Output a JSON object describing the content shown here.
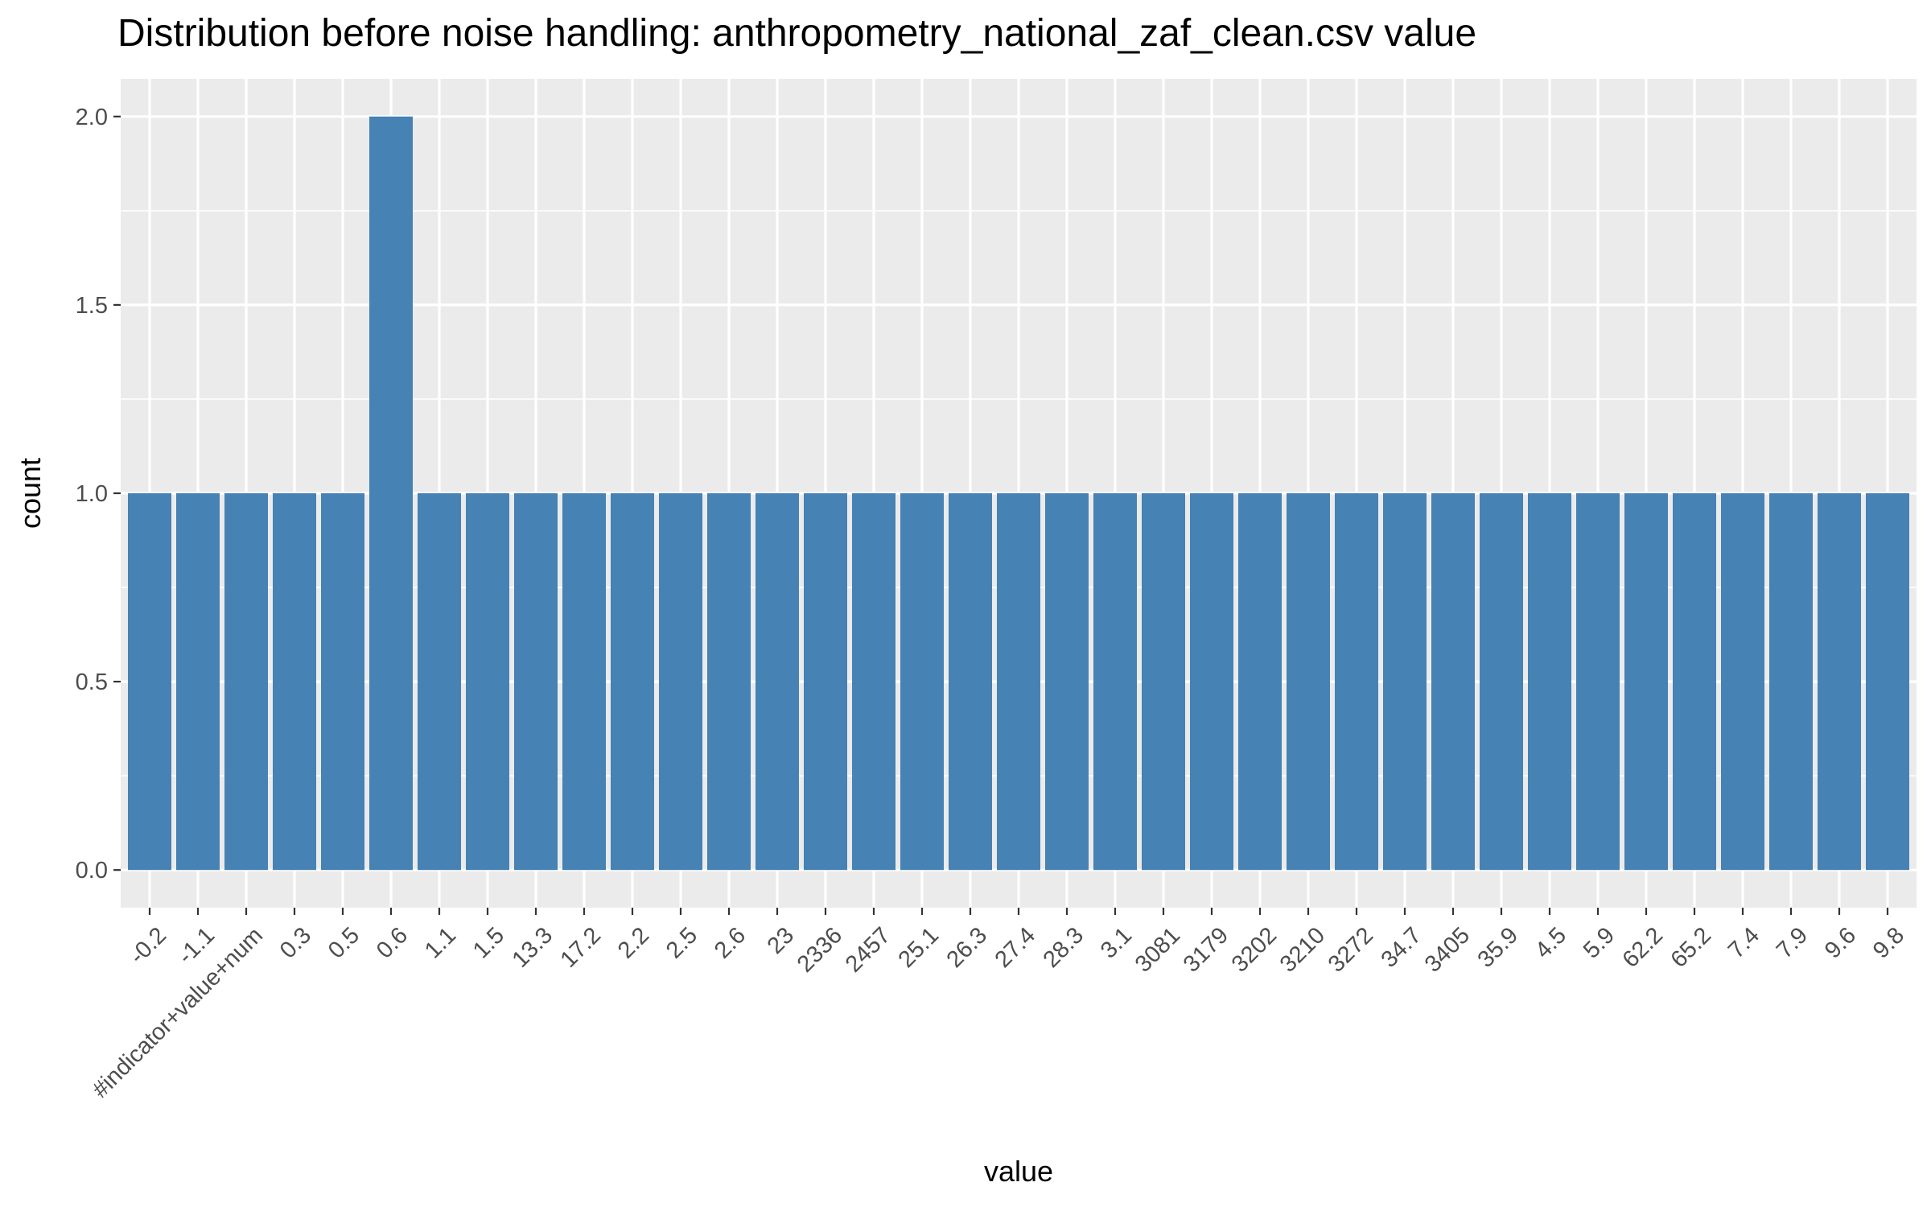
{
  "chart_data": {
    "type": "bar",
    "title": "Distribution before noise handling: anthropometry_national_zaf_clean.csv value",
    "xlabel": "value",
    "ylabel": "count",
    "ylim": [
      -0.1,
      2.1
    ],
    "yticks": [
      "0.0",
      "0.5",
      "1.0",
      "1.5",
      "2.0"
    ],
    "grid": true,
    "colors": {
      "bar": "#4682b4",
      "panel": "#ebebeb",
      "grid": "#ffffff"
    },
    "categories": [
      "-0.2",
      "-1.1",
      "#indicator+value+num",
      "0.3",
      "0.5",
      "0.6",
      "1.1",
      "1.5",
      "13.3",
      "17.2",
      "2.2",
      "2.5",
      "2.6",
      "23",
      "2336",
      "2457",
      "25.1",
      "26.3",
      "27.4",
      "28.3",
      "3.1",
      "3081",
      "3179",
      "3202",
      "3210",
      "3272",
      "34.7",
      "3405",
      "35.9",
      "4.5",
      "5.9",
      "62.2",
      "65.2",
      "7.4",
      "7.9",
      "9.6",
      "9.8"
    ],
    "values": [
      1,
      1,
      1,
      1,
      1,
      2,
      1,
      1,
      1,
      1,
      1,
      1,
      1,
      1,
      1,
      1,
      1,
      1,
      1,
      1,
      1,
      1,
      1,
      1,
      1,
      1,
      1,
      1,
      1,
      1,
      1,
      1,
      1,
      1,
      1,
      1,
      1
    ]
  }
}
